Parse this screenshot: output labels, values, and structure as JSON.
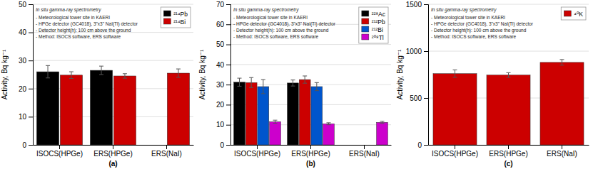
{
  "chart_data": [
    {
      "type": "bar",
      "categories": [
        "ISOCS(HPGe)",
        "ERS(HPGe)",
        "ERS(NaI)"
      ],
      "series": [
        {
          "name": "²¹⁴Pb",
          "color": "black",
          "values": [
            26.0,
            26.5,
            null
          ],
          "errors": [
            2.2,
            1.5,
            null
          ]
        },
        {
          "name": "²¹⁴Bi",
          "color": "#cc0000",
          "values": [
            24.8,
            24.5,
            25.5
          ],
          "errors": [
            1.2,
            0.8,
            1.5
          ]
        }
      ],
      "ylabel": "Activity, Bq kg⁻¹",
      "xlabel": "(a)",
      "ylim": [
        0,
        50
      ],
      "yticks": [
        0,
        10,
        20,
        30,
        40,
        50
      ],
      "grid": true,
      "legend": "upper right",
      "annotations": [
        "In situ gamma-ray spectrometry",
        "- Meteorological tower site in KAERI",
        "- HPGe detector (GC4018), 3\"x3\" NaI(Tl) detector",
        "- Detector height(h): 100 cm above the ground",
        "- Method: ISOCS software, ERS software"
      ]
    },
    {
      "type": "bar",
      "categories": [
        "ISOCS(HPGe)",
        "ERS(HPGe)",
        "ERS(NaI)"
      ],
      "series": [
        {
          "name": "²²⁸Ac",
          "color": "black",
          "values": [
            31.2,
            30.8,
            null
          ],
          "errors": [
            2.0,
            1.5,
            null
          ]
        },
        {
          "name": "²¹²Pb",
          "color": "#cc0000",
          "values": [
            31.0,
            32.5,
            null
          ],
          "errors": [
            2.5,
            1.8,
            null
          ]
        },
        {
          "name": "²¹²Bi",
          "color": "#0055cc",
          "values": [
            29.0,
            29.0,
            null
          ],
          "errors": [
            3.5,
            2.0,
            null
          ]
        },
        {
          "name": "²⁰⁸Tl",
          "color": "#cc00cc",
          "values": [
            11.5,
            10.5,
            11.2
          ],
          "errors": [
            0.8,
            0.5,
            0.5
          ]
        }
      ],
      "ylabel": "Activity, Bq kg⁻¹",
      "xlabel": "(b)",
      "ylim": [
        0,
        70
      ],
      "yticks": [
        0,
        10,
        20,
        30,
        40,
        50,
        60,
        70
      ],
      "grid": true,
      "legend": "upper right",
      "annotations": [
        "In situ gamma-ray spectrometry",
        "- Meteorological tower site in KAERI",
        "- HPGe detector (GC4018), 3\"x3\" NaI(Tl) detector",
        "- Detector height(h): 100 cm above the ground",
        "- Method: ISOCS software, ERS software"
      ]
    },
    {
      "type": "bar",
      "categories": [
        "ISOCS(HPGe)",
        "ERS(HPGe)",
        "ERS(NaI)"
      ],
      "series": [
        {
          "name": "⁴⁰K",
          "color": "#cc0000",
          "values": [
            760,
            745,
            880
          ],
          "errors": [
            40,
            25,
            30
          ]
        }
      ],
      "ylabel": "Activity, Bq kg⁻¹",
      "xlabel": "(c)",
      "ylim": [
        0,
        1500
      ],
      "yticks": [
        0,
        500,
        1000,
        1500
      ],
      "grid": true,
      "legend": "upper right",
      "annotations": [
        "In situ gamma-ray spectrometry",
        "- Meteorological tower site in KAERI",
        "- HPGe detector (GC4018), 3\"x3\" NaI(Tl) detector",
        "- Detector height(h): 100 cm above the ground",
        "- Method: ISOCS software, ERS software"
      ]
    }
  ]
}
